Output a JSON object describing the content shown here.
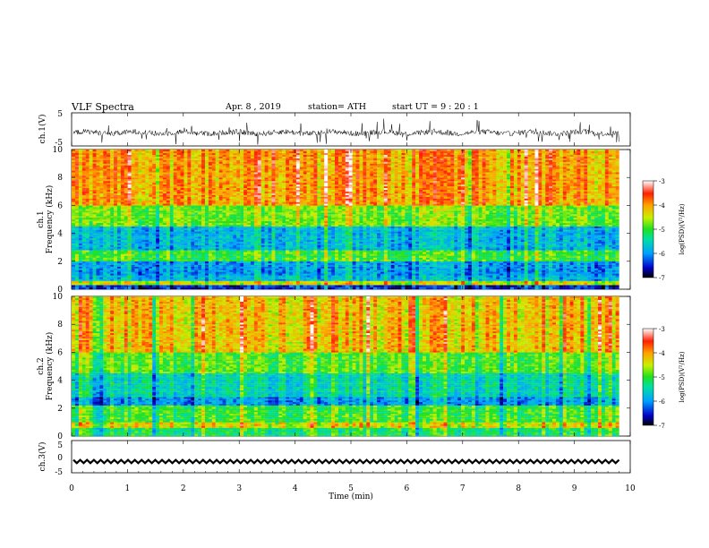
{
  "header": {
    "title": "VLF  Spectra",
    "date": "Apr. 8 , 2019",
    "station": "station= ATH",
    "start": "start  UT  =    9  : 20 : 1"
  },
  "chart_data": {
    "type": "heatmap",
    "panels": [
      {
        "name": "ch1-waveform",
        "type": "line",
        "ylabel": "ch.1(V)",
        "ylim": [
          -5,
          5
        ],
        "yticks": [
          "5",
          "-5"
        ],
        "description_level": "noisy waveform centred near -1 V with spikes to about ±4 V"
      },
      {
        "name": "ch1-spectrogram",
        "type": "heatmap",
        "ylabel_line1": "ch.1",
        "ylabel_line2": "Frequency  (kHz)",
        "ylim": [
          0,
          10
        ],
        "yticks": [
          "0",
          "2",
          "4",
          "6",
          "8",
          "10"
        ],
        "bands_khz_logpsd": [
          [
            0,
            0.3,
            -6.5
          ],
          [
            0.3,
            0.6,
            -4.5
          ],
          [
            0.6,
            1.0,
            -5.8
          ],
          [
            1.0,
            2.0,
            -6.0
          ],
          [
            2.0,
            2.8,
            -5.0
          ],
          [
            2.8,
            4.5,
            -5.8
          ],
          [
            4.5,
            6.0,
            -4.8
          ],
          [
            6.0,
            10.0,
            -4.0
          ]
        ]
      },
      {
        "name": "ch2-spectrogram",
        "type": "heatmap",
        "ylabel_line1": "ch.2",
        "ylabel_line2": "Frequency  (kHz)",
        "ylim": [
          0,
          10
        ],
        "yticks": [
          "0",
          "2",
          "4",
          "6",
          "8",
          "10"
        ],
        "bands_khz_logpsd": [
          [
            0,
            0.6,
            -5.2
          ],
          [
            0.6,
            1.0,
            -4.4
          ],
          [
            1.0,
            2.2,
            -5.0
          ],
          [
            2.2,
            2.8,
            -6.0
          ],
          [
            2.8,
            4.5,
            -5.5
          ],
          [
            4.5,
            6.0,
            -4.9
          ],
          [
            6.0,
            10.0,
            -4.2
          ]
        ]
      },
      {
        "name": "ch3-waveform",
        "type": "line",
        "ylabel": "ch.3(V)",
        "ylim": [
          -5,
          5
        ],
        "yticks": [
          "5",
          "0",
          "-5"
        ],
        "description_level": "square-wave pulse train near -1.5 V"
      }
    ],
    "x": {
      "xlabel": "Time  (min)",
      "xlim": [
        0,
        10
      ],
      "ticks": [
        "0",
        "1",
        "2",
        "3",
        "4",
        "5",
        "6",
        "7",
        "8",
        "9",
        "10"
      ],
      "data_end": 9.8
    },
    "colorbar": {
      "label": "log(PSD)(V²/Hz)",
      "range": [
        -7,
        -3
      ],
      "ticks": [
        "-3",
        "-4",
        "-5",
        "-6",
        "-7"
      ],
      "colors": [
        "#000000",
        "#0000c8",
        "#00a0ff",
        "#00e0a0",
        "#20e020",
        "#c8f000",
        "#ffa000",
        "#ff2000",
        "#ffffff"
      ]
    }
  }
}
